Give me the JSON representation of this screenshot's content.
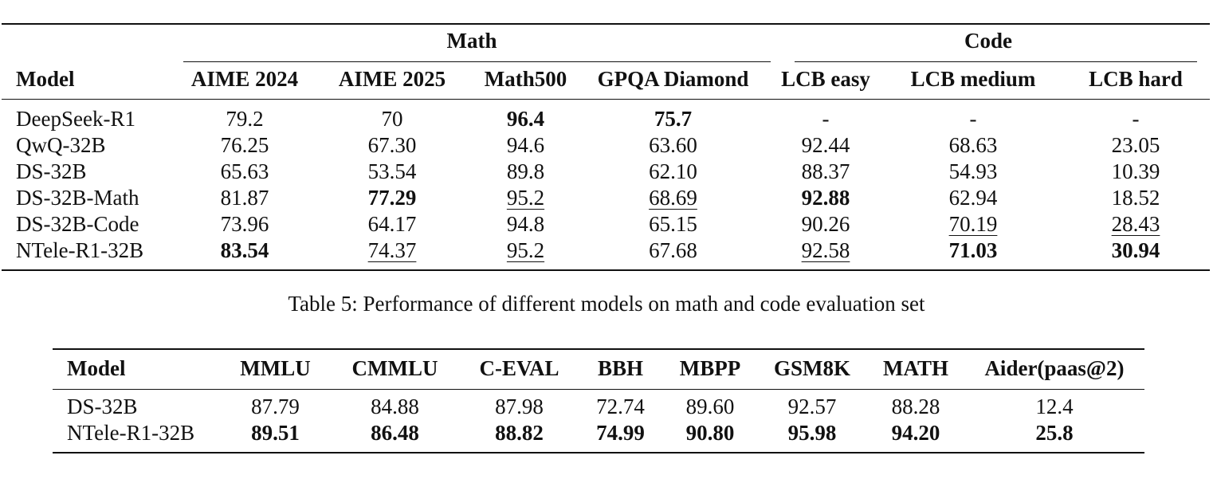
{
  "table5": {
    "group_math": "Math",
    "group_code": "Code",
    "columns": [
      "Model",
      "AIME 2024",
      "AIME 2025",
      "Math500",
      "GPQA Diamond",
      "LCB easy",
      "LCB medium",
      "LCB hard"
    ],
    "rows": [
      [
        "DeepSeek-R1",
        "79.2",
        "70",
        "96.4",
        "75.7",
        "-",
        "-",
        "-"
      ],
      [
        "QwQ-32B",
        "76.25",
        "67.30",
        "94.6",
        "63.60",
        "92.44",
        "68.63",
        "23.05"
      ],
      [
        "DS-32B",
        "65.63",
        "53.54",
        "89.8",
        "62.10",
        "88.37",
        "54.93",
        "10.39"
      ],
      [
        "DS-32B-Math",
        "81.87",
        "77.29",
        "95.2",
        "68.69",
        "92.88",
        "62.94",
        "18.52"
      ],
      [
        "DS-32B-Code",
        "73.96",
        "64.17",
        "94.8",
        "65.15",
        "90.26",
        "70.19",
        "28.43"
      ],
      [
        "NTele-R1-32B",
        "83.54",
        "74.37",
        "95.2",
        "67.68",
        "92.58",
        "71.03",
        "30.94"
      ]
    ],
    "caption": "Table 5: Performance of different models on math and code evaluation set"
  },
  "table6": {
    "columns": [
      "Model",
      "MMLU",
      "CMMLU",
      "C-EVAL",
      "BBH",
      "MBPP",
      "GSM8K",
      "MATH",
      "Aider(paas@2)"
    ],
    "rows": [
      [
        "DS-32B",
        "87.79",
        "84.88",
        "87.98",
        "72.74",
        "89.60",
        "92.57",
        "88.28",
        "12.4"
      ],
      [
        "NTele-R1-32B",
        "89.51",
        "86.48",
        "88.82",
        "74.99",
        "90.80",
        "95.98",
        "94.20",
        "25.8"
      ]
    ]
  }
}
